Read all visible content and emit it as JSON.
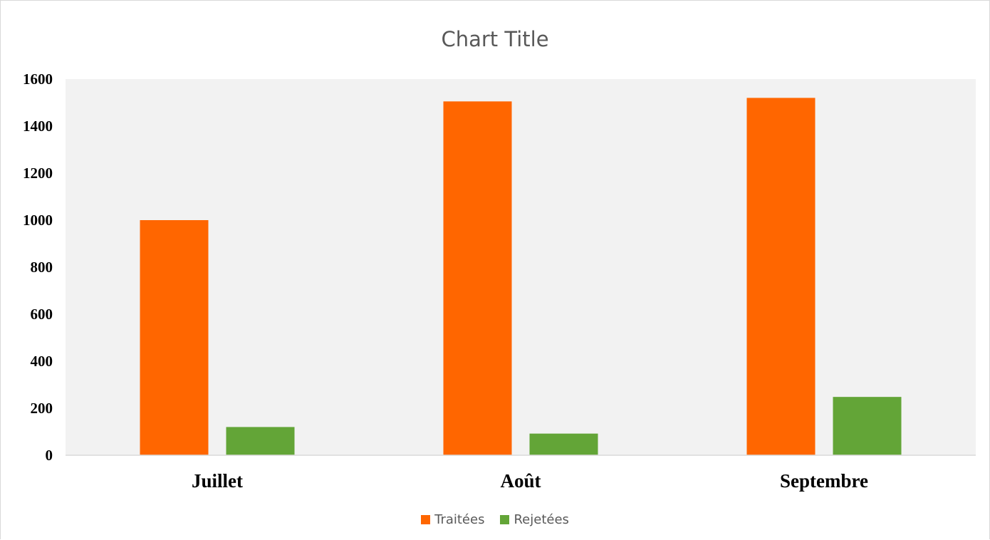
{
  "chart_data": {
    "type": "bar",
    "title": "Chart Title",
    "categories": [
      "Juillet",
      "Août",
      "Septembre"
    ],
    "series": [
      {
        "name": "Traitées",
        "color": "#ff6600",
        "values": [
          1000,
          1505,
          1520
        ]
      },
      {
        "name": "Rejetées",
        "color": "#63a537",
        "values": [
          120,
          92,
          248
        ]
      }
    ],
    "ylim": [
      0,
      1600
    ],
    "yticks": [
      "0",
      "200",
      "400",
      "600",
      "800",
      "1000",
      "1200",
      "1400",
      "1600"
    ],
    "xlabel": "",
    "ylabel": "",
    "grid": false,
    "plot_background": "#f2f2f2",
    "legend_position": "bottom"
  }
}
